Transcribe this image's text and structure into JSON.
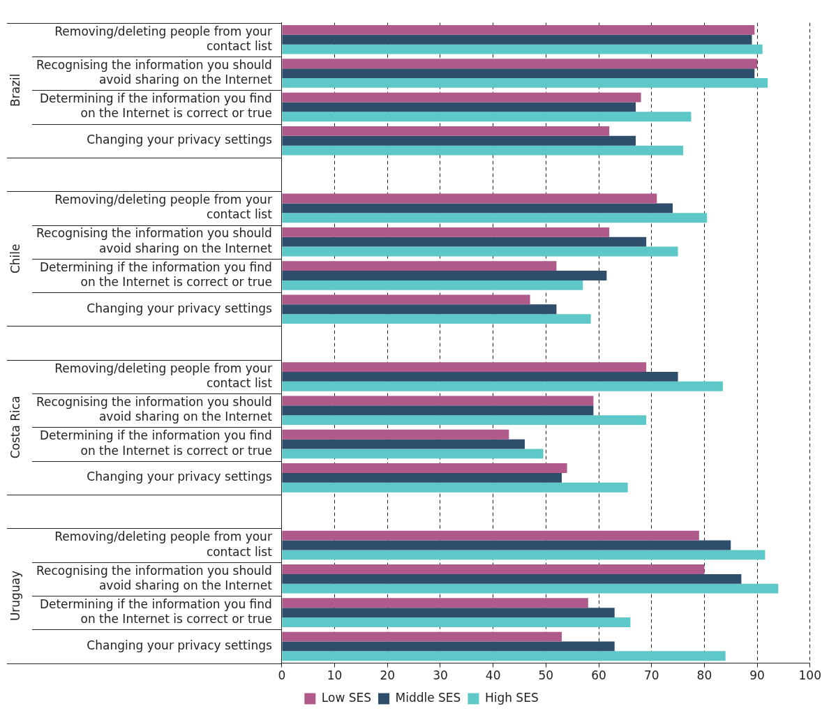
{
  "chart_data": {
    "type": "bar",
    "orientation": "horizontal",
    "categories": [
      "Removing/deleting people from your contact list",
      "Recognising the information you should avoid sharing on the Internet",
      "Determining if the information you find on the Internet is correct or true",
      "Changing your privacy settings",
      null,
      "Removing/deleting people from your contact list",
      "Recognising the information you should avoid sharing on the Internet",
      "Determining if the information you find on the Internet is correct or true",
      "Changing your privacy settings",
      null,
      "Removing/deleting people from your contact list",
      "Recognising the information you should avoid sharing on the Internet",
      "Determining if the information you find on the Internet is correct or true",
      "Changing your privacy settings",
      null,
      "Removing/deleting people from your contact list",
      "Recognising the information you should avoid sharing on the Internet",
      "Determining if the information you find on the Internet is correct or true",
      "Changing your privacy settings"
    ],
    "series": [
      {
        "name": "Low SES",
        "color": "#b05a8c",
        "values": [
          89.5,
          90,
          68,
          62,
          null,
          71,
          62,
          52,
          47,
          null,
          69,
          59,
          43,
          54,
          null,
          79,
          80,
          58,
          53
        ]
      },
      {
        "name": "Middle SES",
        "color": "#2f4e6b",
        "values": [
          89,
          89.5,
          67,
          67,
          null,
          74,
          69,
          61.5,
          52,
          null,
          75,
          59,
          46,
          53,
          null,
          85,
          87,
          63,
          63
        ]
      },
      {
        "name": "High SES",
        "color": "#5ec8c8",
        "values": [
          91,
          92,
          77.5,
          76,
          null,
          80.5,
          75,
          57,
          58.5,
          null,
          83.5,
          69,
          49.5,
          65.5,
          null,
          91.5,
          94,
          66,
          84
        ]
      }
    ],
    "annotations": [
      "Brazil",
      "Chile",
      "Costa Rica",
      "Uruguay"
    ],
    "xlim": [
      0,
      100
    ],
    "xticks": [
      0,
      10,
      20,
      30,
      40,
      50,
      60,
      70,
      80,
      90,
      100
    ],
    "grid": "x",
    "legend": "bottom"
  }
}
